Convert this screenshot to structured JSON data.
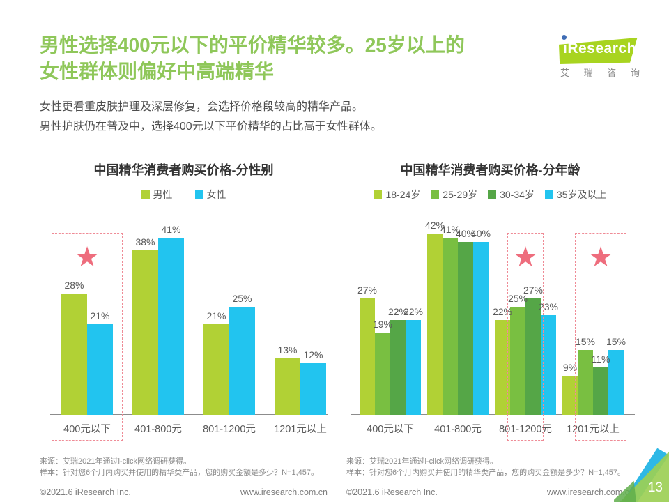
{
  "header": {
    "title_line1": "男性选择400元以下的平价精华较多。25岁以上的",
    "title_line2": "女性群体则偏好中高端精华",
    "logo": {
      "brand": "ıResearch",
      "subtext_chars": [
        "艾",
        "瑞",
        "咨",
        "询"
      ]
    }
  },
  "intro": {
    "line1": "女性更看重皮肤护理及深层修复，会选择价格段较高的精华产品。",
    "line2": "男性护肤仍在普及中，选择400元以下平价精华的占比高于女性群体。"
  },
  "chart_data": [
    {
      "type": "bar",
      "title": "中国精华消费者购买价格-分性别",
      "categories": [
        "400元以下",
        "401-800元",
        "801-1200元",
        "1201元以上"
      ],
      "series": [
        {
          "name": "男性",
          "color": "#b1d135",
          "values": [
            28,
            38,
            21,
            13
          ]
        },
        {
          "name": "女性",
          "color": "#22c4ef",
          "values": [
            21,
            41,
            25,
            12
          ]
        }
      ],
      "unit": "%",
      "ylim": [
        0,
        45
      ],
      "grid": false,
      "legend_position": "top",
      "highlights": [
        {
          "category": 0,
          "series_from": 0,
          "series_to": 1,
          "star": true,
          "meaning": "400元以下价位被突出标注"
        }
      ]
    },
    {
      "type": "bar",
      "title": "中国精华消费者购买价格-分年龄",
      "categories": [
        "400元以下",
        "401-800元",
        "801-1200元",
        "1201元以上"
      ],
      "series": [
        {
          "name": "18-24岁",
          "color": "#b1d135",
          "values": [
            27,
            42,
            22,
            9
          ]
        },
        {
          "name": "25-29岁",
          "color": "#79bf41",
          "values": [
            19,
            41,
            25,
            15
          ]
        },
        {
          "name": "30-34岁",
          "color": "#55a647",
          "values": [
            22,
            40,
            27,
            11
          ]
        },
        {
          "name": "35岁及以上",
          "color": "#22c4ef",
          "values": [
            22,
            40,
            23,
            15
          ]
        }
      ],
      "unit": "%",
      "ylim": [
        0,
        45
      ],
      "grid": false,
      "legend_position": "top",
      "highlights": [
        {
          "category": 2,
          "series_from": 1,
          "series_to": 2,
          "star": true,
          "meaning": "25岁以上群体在801-1200元价位被突出标注"
        },
        {
          "category": 3,
          "series_from": 1,
          "series_to": 3,
          "star": true,
          "meaning": "25岁以上群体在1201元以上价位被突出标注"
        }
      ]
    }
  ],
  "footers": [
    {
      "source": "来源：艾瑞2021年通过i-click网络调研获得。",
      "sample": "样本：针对您6个月内购买并使用的精华类产品，您的购买金额是多少？N=1,457。",
      "copyright": "©2021.6 iResearch Inc.",
      "website": "www.iresearch.com.cn"
    },
    {
      "source": "来源：艾瑞2021年通过i-click网络调研获得。",
      "sample": "样本：针对您6个月内购买并使用的精华类产品，您的购买金额是多少？N=1,457。",
      "copyright": "©2021.6 iResearch Inc.",
      "website": "www.iresearch.com.cn"
    }
  ],
  "page_number": "13",
  "colors": {
    "title_green": "#8fc75a",
    "star_red": "#ee6d7d",
    "highlight_border": "#ef8b96",
    "label_gray": "#595959"
  }
}
